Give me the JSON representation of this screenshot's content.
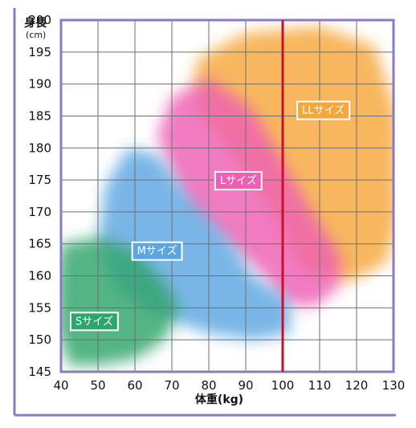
{
  "chart_data": {
    "type": "area",
    "x_axis": {
      "label": "体重(kg)",
      "min": 40,
      "max": 130,
      "ticks": [
        40,
        50,
        60,
        70,
        80,
        90,
        100,
        110,
        120,
        130
      ]
    },
    "y_axis": {
      "label": "身長",
      "unit": "(cm)",
      "min": 145,
      "max": 200,
      "ticks": [
        145,
        150,
        155,
        160,
        165,
        170,
        175,
        180,
        185,
        190,
        195,
        200
      ]
    },
    "grid": true,
    "reference_line": {
      "x": 100,
      "color": "#c8102e"
    },
    "regions": [
      {
        "name": "LLサイズ",
        "color": "#f7a73a",
        "label_at": {
          "x": 111,
          "y": 186
        },
        "outline": [
          [
            77,
            194
          ],
          [
            90,
            198
          ],
          [
            110,
            199
          ],
          [
            125,
            196
          ],
          [
            131,
            185
          ],
          [
            131,
            168
          ],
          [
            128,
            162
          ],
          [
            118,
            159
          ],
          [
            105,
            161
          ],
          [
            97,
            170
          ],
          [
            88,
            178
          ],
          [
            78,
            185
          ],
          [
            76,
            190
          ]
        ]
      },
      {
        "name": "Lサイズ",
        "color": "#ee5fb4",
        "label_at": {
          "x": 88,
          "y": 175
        },
        "outline": [
          [
            70,
            188
          ],
          [
            80,
            191
          ],
          [
            92,
            186
          ],
          [
            100,
            178
          ],
          [
            108,
            170
          ],
          [
            116,
            163
          ],
          [
            115,
            158
          ],
          [
            108,
            155
          ],
          [
            100,
            156
          ],
          [
            95,
            160
          ],
          [
            85,
            165
          ],
          [
            75,
            170
          ],
          [
            70,
            176
          ],
          [
            66,
            182
          ]
        ]
      },
      {
        "name": "Mサイズ",
        "color": "#5aa6e2",
        "label_at": {
          "x": 66,
          "y": 164
        },
        "outline": [
          [
            58,
            180
          ],
          [
            66,
            179
          ],
          [
            75,
            172
          ],
          [
            85,
            166
          ],
          [
            92,
            160
          ],
          [
            102,
            156
          ],
          [
            102,
            151
          ],
          [
            92,
            150
          ],
          [
            80,
            151
          ],
          [
            70,
            153
          ],
          [
            62,
            155
          ],
          [
            55,
            158
          ],
          [
            50,
            165
          ],
          [
            52,
            174
          ]
        ]
      },
      {
        "name": "Sサイズ",
        "color": "#2ea56a",
        "label_at": {
          "x": 49,
          "y": 153
        },
        "outline": [
          [
            40,
            165
          ],
          [
            50,
            166
          ],
          [
            60,
            164
          ],
          [
            68,
            159
          ],
          [
            72,
            155
          ],
          [
            68,
            150
          ],
          [
            60,
            147
          ],
          [
            50,
            146
          ],
          [
            42,
            146
          ],
          [
            39,
            152
          ],
          [
            39,
            160
          ]
        ]
      }
    ]
  }
}
